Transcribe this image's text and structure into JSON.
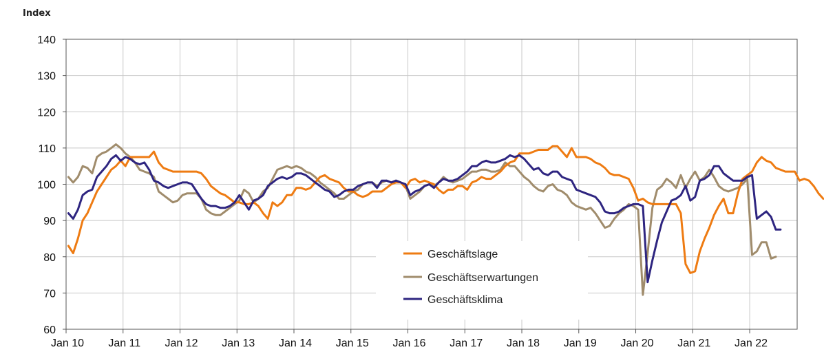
{
  "chart_data": {
    "type": "line",
    "title": "",
    "ylabel": "Index",
    "xlabel": "",
    "ylim": [
      60,
      140
    ],
    "yticks": [
      60,
      70,
      80,
      90,
      100,
      110,
      120,
      130,
      140
    ],
    "x_start": "Jan 10",
    "x_end": "Aug 22",
    "xticks": [
      "Jan 10",
      "Jan 11",
      "Jan 12",
      "Jan 13",
      "Jan 14",
      "Jan 15",
      "Jan 16",
      "Jan 17",
      "Jan 18",
      "Jan 19",
      "Jan 20",
      "Jan 21",
      "Jan 22"
    ],
    "grid": true,
    "legend_position": "bottom-center",
    "series": [
      {
        "name": "Geschäftslage",
        "color": "#ee7b12",
        "values": [
          83,
          81,
          85,
          90,
          92,
          95,
          98,
          100,
          102,
          104,
          105,
          106.5,
          105,
          107.5,
          107.5,
          107.5,
          107.5,
          107.5,
          109,
          106,
          104.5,
          104,
          103.5,
          103.5,
          103.5,
          103.5,
          103.5,
          103.5,
          103,
          101.5,
          99.5,
          98.5,
          97.5,
          97,
          96,
          95,
          95,
          94.5,
          94.5,
          95,
          94,
          92,
          90.5,
          95,
          94,
          95,
          97,
          97,
          99,
          99,
          98.5,
          99,
          100.5,
          102,
          102.5,
          101.5,
          101,
          100.5,
          99,
          98,
          98,
          97,
          96.5,
          97,
          98,
          98,
          98,
          99,
          100,
          100.5,
          100.5,
          99,
          101,
          101.5,
          100.5,
          101,
          100.5,
          100,
          98.5,
          97.5,
          98.5,
          98.5,
          99.5,
          99.5,
          98.5,
          100.5,
          101,
          102,
          101.5,
          101.5,
          102.5,
          103.5,
          105,
          106,
          106.5,
          108.5,
          108.5,
          108.5,
          109,
          109.5,
          109.5,
          109.5,
          110.5,
          110.5,
          109,
          107.5,
          110,
          107.5,
          107.5,
          107.5,
          107,
          106,
          105.5,
          104.5,
          103,
          102.5,
          102.5,
          102,
          101.5,
          99,
          95.5,
          96,
          95,
          94.5,
          94.5,
          94.5,
          94.5,
          94.5,
          94.5,
          92,
          78,
          75.5,
          76,
          81.5,
          85,
          88,
          91.5,
          94,
          96,
          92,
          92,
          97.5,
          101.5,
          102.5,
          103.5,
          106,
          107.5,
          106.5,
          106,
          104.5,
          104,
          103.5,
          103.5,
          103.5,
          101,
          101.5,
          101,
          99.5,
          97.5,
          96
        ]
      },
      {
        "name": "Geschäftserwartungen",
        "color": "#a08c6c",
        "values": [
          102,
          100.5,
          102,
          105,
          104.5,
          103,
          107.5,
          108.5,
          109,
          110,
          111,
          110,
          108.5,
          107.5,
          106,
          104,
          103.5,
          103,
          102,
          98,
          97,
          96,
          95,
          95.5,
          97,
          97.5,
          97.5,
          97.5,
          96,
          93,
          92,
          91.5,
          91.5,
          92.5,
          93.5,
          94.5,
          95.5,
          98.5,
          97.5,
          95,
          96,
          98,
          99,
          101.5,
          104,
          104.5,
          105,
          104.5,
          105,
          104.5,
          103.5,
          103,
          102,
          100.5,
          99.5,
          98.5,
          97.5,
          96,
          96,
          97,
          98,
          98.5,
          100,
          100.5,
          100.5,
          99.5,
          100.5,
          101,
          100.5,
          101,
          100.5,
          99.5,
          96,
          97,
          98,
          99.5,
          100,
          99.5,
          100.5,
          102,
          101,
          100.5,
          101,
          101.5,
          102.5,
          103.5,
          103.5,
          104,
          104,
          103.5,
          103.5,
          104,
          106,
          105,
          105,
          103.5,
          102,
          101,
          99.5,
          98.5,
          98,
          99.5,
          100,
          98.5,
          98,
          97,
          95,
          94,
          93.5,
          93,
          93.5,
          92,
          90,
          88,
          88.5,
          90.5,
          92,
          93,
          94.5,
          94,
          93,
          69.5,
          81,
          93.5,
          98.5,
          99.5,
          101.5,
          100.5,
          99,
          102.5,
          99,
          101.5,
          103.5,
          101,
          102,
          104,
          102,
          99.5,
          98.5,
          98,
          98.5,
          99,
          100,
          101.5,
          80.5,
          81.5,
          84,
          84,
          79.5,
          80
        ]
      },
      {
        "name": "Geschäftsklima",
        "color": "#2e2580",
        "values": [
          92,
          90.5,
          93,
          97,
          98,
          98.5,
          102,
          103.5,
          105,
          107,
          108,
          106.5,
          107.5,
          107,
          106,
          105.5,
          106,
          104,
          101,
          100.5,
          99.5,
          99,
          99.5,
          100,
          100.5,
          100.5,
          100,
          98,
          96,
          94.5,
          94,
          94,
          93.5,
          93.5,
          94,
          95,
          97,
          95,
          93,
          95.5,
          96,
          97,
          99.5,
          100.5,
          101.5,
          102,
          101.5,
          102,
          103,
          103,
          102.5,
          101.5,
          100.5,
          99.5,
          98.5,
          98,
          96.5,
          97,
          98,
          98.5,
          98.5,
          99.5,
          100,
          100.5,
          100.5,
          99,
          101,
          101,
          100.5,
          101,
          100.5,
          100,
          97,
          98,
          98.5,
          99.5,
          100,
          99,
          100.5,
          101.5,
          101,
          101,
          101.5,
          102.5,
          103.5,
          105,
          105,
          106,
          106.5,
          106,
          106,
          106.5,
          107,
          108,
          107.5,
          108,
          107,
          105.5,
          104,
          104.5,
          103,
          102.5,
          103.5,
          103.5,
          102,
          101.5,
          101,
          98.5,
          98,
          97.5,
          97,
          96.5,
          95,
          92.5,
          92,
          92,
          92.5,
          93.5,
          94,
          94.5,
          94.5,
          94,
          73,
          79,
          84.5,
          89.5,
          92.5,
          95.5,
          96,
          97,
          99.5,
          95.5,
          96.5,
          101,
          101.5,
          102.5,
          105,
          105,
          103,
          102,
          101,
          101,
          101,
          102,
          102.5,
          90.5,
          91.5,
          92.5,
          91,
          87.5,
          87.5
        ]
      }
    ]
  }
}
